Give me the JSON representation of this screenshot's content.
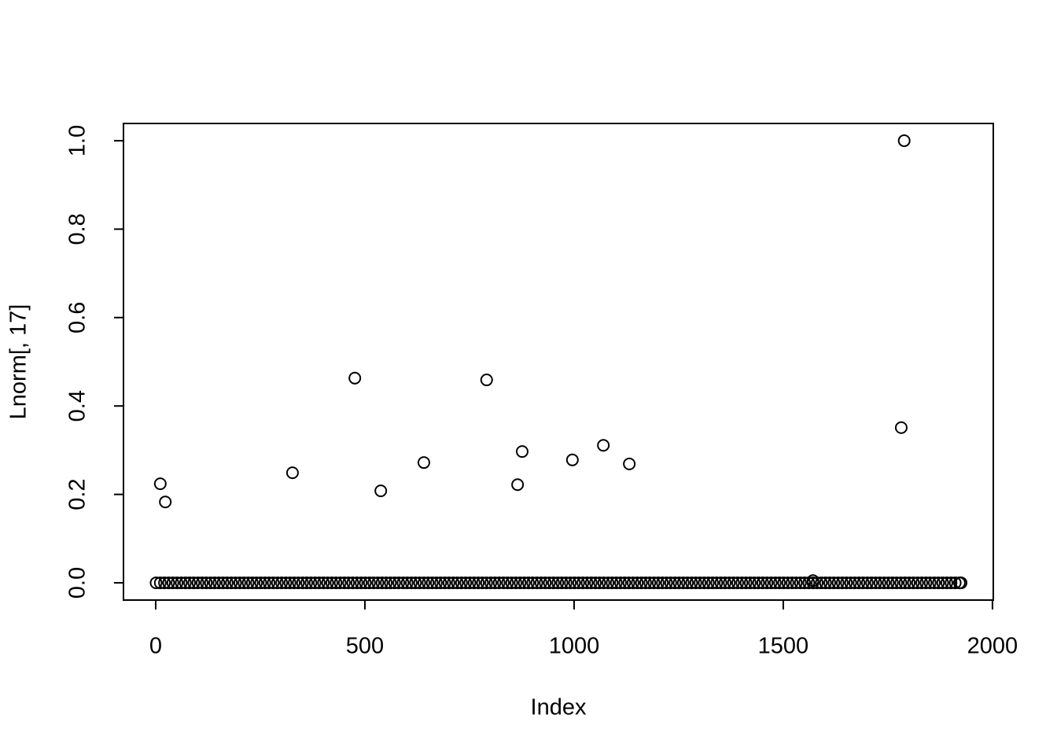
{
  "chart_data": {
    "type": "scatter",
    "x_label": "Index",
    "y_label": "Lnorm[, 17]",
    "xlim": [
      -77,
      2002
    ],
    "ylim": [
      -0.039,
      1.039
    ],
    "xticks": [
      0,
      500,
      1000,
      1500,
      2000
    ],
    "yticks": [
      {
        "value": 0,
        "label": "0.0"
      },
      0.2,
      0.4,
      0.6,
      0.8,
      {
        "value": 1,
        "label": "1.0"
      }
    ],
    "color": "#000000",
    "x": [
      1,
      11,
      21,
      31,
      41,
      51,
      61,
      71,
      81,
      91,
      101,
      111,
      121,
      131,
      141,
      151,
      161,
      171,
      181,
      191,
      201,
      211,
      221,
      231,
      241,
      251,
      261,
      271,
      281,
      291,
      301,
      311,
      321,
      331,
      341,
      351,
      361,
      371,
      381,
      391,
      401,
      411,
      421,
      431,
      441,
      451,
      461,
      471,
      481,
      491,
      501,
      511,
      521,
      531,
      541,
      551,
      561,
      571,
      581,
      591,
      601,
      611,
      621,
      631,
      641,
      651,
      661,
      671,
      681,
      691,
      701,
      711,
      721,
      731,
      741,
      751,
      761,
      771,
      781,
      791,
      801,
      811,
      821,
      831,
      841,
      851,
      861,
      871,
      881,
      891,
      901,
      911,
      921,
      931,
      941,
      951,
      961,
      971,
      981,
      991,
      1001,
      1011,
      1021,
      1031,
      1041,
      1051,
      1061,
      1071,
      1081,
      1091,
      1101,
      1111,
      1121,
      1131,
      1141,
      1151,
      1161,
      1171,
      1181,
      1191,
      1201,
      1211,
      1221,
      1231,
      1241,
      1251,
      1261,
      1271,
      1281,
      1291,
      1301,
      1311,
      1321,
      1331,
      1341,
      1351,
      1361,
      1371,
      1381,
      1391,
      1401,
      1411,
      1421,
      1431,
      1441,
      1451,
      1461,
      1471,
      1481,
      1491,
      1501,
      1511,
      1521,
      1531,
      1541,
      1551,
      1561,
      1571,
      1581,
      1591,
      1601,
      1611,
      1621,
      1631,
      1641,
      1651,
      1661,
      1671,
      1681,
      1691,
      1701,
      1711,
      1721,
      1731,
      1741,
      1751,
      1761,
      1771,
      1781,
      1791,
      1801,
      1811,
      1821,
      1831,
      1841,
      1851,
      1861,
      1871,
      1881,
      1891,
      1901,
      1911,
      1921,
      1925,
      11,
      23,
      327,
      476,
      538,
      641,
      791,
      865,
      876,
      996,
      1070,
      1132,
      1571,
      1782,
      1789
    ],
    "values": [
      0,
      0,
      0,
      0,
      0,
      0,
      0,
      0,
      0,
      0,
      0,
      0,
      0,
      0,
      0,
      0,
      0,
      0,
      0,
      0,
      0,
      0,
      0,
      0,
      0,
      0,
      0,
      0,
      0,
      0,
      0,
      0,
      0,
      0,
      0,
      0,
      0,
      0,
      0,
      0,
      0,
      0,
      0,
      0,
      0,
      0,
      0,
      0,
      0,
      0,
      0,
      0,
      0,
      0,
      0,
      0,
      0,
      0,
      0,
      0,
      0,
      0,
      0,
      0,
      0,
      0,
      0,
      0,
      0,
      0,
      0,
      0,
      0,
      0,
      0,
      0,
      0,
      0,
      0,
      0,
      0,
      0,
      0,
      0,
      0,
      0,
      0,
      0,
      0,
      0,
      0,
      0,
      0,
      0,
      0,
      0,
      0,
      0,
      0,
      0,
      0,
      0,
      0,
      0,
      0,
      0,
      0,
      0,
      0,
      0,
      0,
      0,
      0,
      0,
      0,
      0,
      0,
      0,
      0,
      0,
      0,
      0,
      0,
      0,
      0,
      0,
      0,
      0,
      0,
      0,
      0,
      0,
      0,
      0,
      0,
      0,
      0,
      0,
      0,
      0,
      0,
      0,
      0,
      0,
      0,
      0,
      0,
      0,
      0,
      0,
      0,
      0,
      0,
      0,
      0,
      0,
      0,
      0,
      0,
      0,
      0,
      0,
      0,
      0,
      0,
      0,
      0,
      0,
      0,
      0,
      0,
      0,
      0,
      0,
      0,
      0,
      0,
      0,
      0,
      0,
      0,
      0,
      0,
      0,
      0,
      0,
      0,
      0,
      0,
      0,
      0,
      0,
      0,
      0,
      0.224,
      0.183,
      0.249,
      0.463,
      0.208,
      0.272,
      0.459,
      0.222,
      0.297,
      0.278,
      0.311,
      0.269,
      0.005,
      0.351,
      1.0
    ]
  }
}
